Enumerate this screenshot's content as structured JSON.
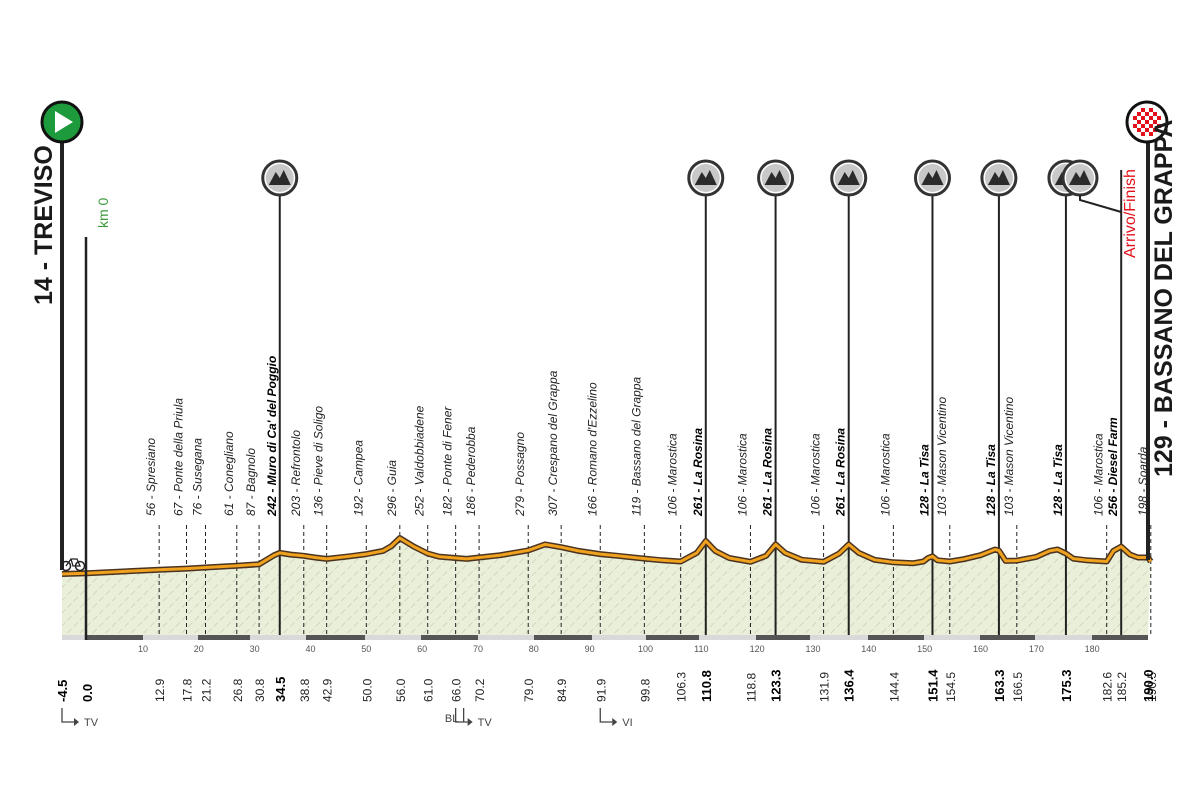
{
  "start": {
    "label": "14 - TREVISO",
    "km": "-4.5"
  },
  "finish": {
    "label": "129 - BASSANO DEL GRAPPA",
    "sub": "Arrivo/Finish",
    "km": "190.0"
  },
  "km0_label": "km 0",
  "road_signs": [
    {
      "km": -4.5,
      "text": "TV"
    },
    {
      "km": 66.0,
      "text": "BL",
      "extra": "TV"
    },
    {
      "km": 91.9,
      "text": "VI"
    }
  ],
  "colors": {
    "profile_line": "#f0a21e",
    "profile_outline": "#4a3320",
    "fill": "#e9efd9",
    "hatch": "#b9c2a8",
    "start_marker": "#1d9a3b",
    "finish_accent": "#e3111b"
  },
  "chart_data": {
    "type": "area",
    "xlabel": "",
    "ylabel": "",
    "xlim": [
      -4.5,
      190.0
    ],
    "axis_ticks": [
      10,
      20,
      30,
      40,
      50,
      60,
      70,
      80,
      90,
      100,
      110,
      120,
      130,
      140,
      150,
      160,
      170,
      180
    ],
    "elevation_profile": {
      "x": [
        -4.5,
        0,
        12.9,
        17.8,
        21.2,
        26.8,
        30.8,
        33.5,
        34.5,
        36.5,
        38.8,
        40.8,
        42.9,
        47,
        50.0,
        53,
        54.5,
        56.0,
        58.5,
        61.0,
        63,
        66.0,
        68,
        70.2,
        74,
        79.0,
        82,
        84.9,
        88,
        91.9,
        95,
        99.8,
        103,
        106.3,
        109.2,
        110.8,
        112.5,
        115,
        118.8,
        121.6,
        123.3,
        125,
        128,
        131.9,
        134.7,
        136.4,
        138.2,
        141,
        144.4,
        148,
        149.8,
        150.6,
        151.4,
        152.3,
        154.5,
        157,
        160,
        162.6,
        163.3,
        164.5,
        166.5,
        170,
        172.4,
        173.8,
        175.3,
        176.6,
        179,
        182.6,
        183.8,
        185.2,
        186.8,
        188.2,
        190.5,
        190.0
      ],
      "y": [
        14,
        17,
        29,
        33,
        37,
        43,
        48,
        80,
        88,
        82,
        78,
        72,
        67,
        76,
        84,
        95,
        112,
        140,
        110,
        86,
        75,
        70,
        67,
        72,
        80,
        97,
        118,
        108,
        95,
        84,
        78,
        68,
        62,
        58,
        88,
        130,
        95,
        70,
        57,
        78,
        118,
        88,
        64,
        57,
        86,
        118,
        88,
        64,
        55,
        52,
        58,
        70,
        76,
        62,
        58,
        66,
        80,
        100,
        96,
        60,
        61,
        74,
        95,
        100,
        86,
        68,
        62,
        58,
        95,
        110,
        82,
        72,
        58,
        72
      ]
    },
    "waypoints": [
      {
        "km": 12.9,
        "label": "56 - Spresiano"
      },
      {
        "km": 17.8,
        "label": "67 - Ponte della Priula"
      },
      {
        "km": 21.2,
        "label": "76 - Susegana"
      },
      {
        "km": 26.8,
        "label": "61 - Conegliano"
      },
      {
        "km": 30.8,
        "label": "87 - Bagnolo"
      },
      {
        "km": 34.5,
        "label": "242 - Muro di Ca' del Poggio",
        "climb": true
      },
      {
        "km": 38.8,
        "label": "203 - Refrontolo"
      },
      {
        "km": 42.9,
        "label": "136 - Pieve di Soligo"
      },
      {
        "km": 50.0,
        "label": "192 - Campea"
      },
      {
        "km": 56.0,
        "label": "296 - Guia"
      },
      {
        "km": 61.0,
        "label": "252 - Valdobbiadene"
      },
      {
        "km": 66.0,
        "label": "182 - Ponte di Fener"
      },
      {
        "km": 70.2,
        "label": "186 - Pederobba"
      },
      {
        "km": 79.0,
        "label": "279 - Possagno"
      },
      {
        "km": 84.9,
        "label": "307 - Crespano del Grappa"
      },
      {
        "km": 91.9,
        "label": "166 - Romano d'Ezzelino"
      },
      {
        "km": 99.8,
        "label": "119 - Bassano del Grappa"
      },
      {
        "km": 106.3,
        "label": "106 - Marostica"
      },
      {
        "km": 110.8,
        "label": "261 - La Rosina",
        "climb": true
      },
      {
        "km": 118.8,
        "label": "106 - Marostica"
      },
      {
        "km": 123.3,
        "label": "261 - La Rosina",
        "climb": true
      },
      {
        "km": 131.9,
        "label": "106 - Marostica"
      },
      {
        "km": 136.4,
        "label": "261 - La Rosina",
        "climb": true
      },
      {
        "km": 144.4,
        "label": "106 - Marostica"
      },
      {
        "km": 151.4,
        "label": "128 - La Tisa",
        "climb": true
      },
      {
        "km": 154.5,
        "label": "103 - Mason Vicentino"
      },
      {
        "km": 163.3,
        "label": "128 - La Tisa",
        "climb": true
      },
      {
        "km": 166.5,
        "label": "103 - Mason Vicentino"
      },
      {
        "km": 175.3,
        "label": "128 - La Tisa",
        "climb": true
      },
      {
        "km": 182.6,
        "label": "106 - Marostica"
      },
      {
        "km": 185.2,
        "label": "256 - Diesel Farm",
        "climb": true
      },
      {
        "km": 190.5,
        "label": "198 - Soarda"
      }
    ],
    "km_labels": [
      {
        "km": -4.5,
        "text": "-4.5",
        "bold": true
      },
      {
        "km": 0.0,
        "text": "0.0",
        "bold": true
      },
      {
        "km": 12.9,
        "text": "12.9"
      },
      {
        "km": 17.8,
        "text": "17.8"
      },
      {
        "km": 21.2,
        "text": "21.2"
      },
      {
        "km": 26.8,
        "text": "26.8"
      },
      {
        "km": 30.8,
        "text": "30.8"
      },
      {
        "km": 34.5,
        "text": "34.5",
        "bold": true
      },
      {
        "km": 38.8,
        "text": "38.8"
      },
      {
        "km": 42.9,
        "text": "42.9"
      },
      {
        "km": 50.0,
        "text": "50.0"
      },
      {
        "km": 56.0,
        "text": "56.0"
      },
      {
        "km": 61.0,
        "text": "61.0"
      },
      {
        "km": 66.0,
        "text": "66.0"
      },
      {
        "km": 70.2,
        "text": "70.2"
      },
      {
        "km": 79.0,
        "text": "79.0"
      },
      {
        "km": 84.9,
        "text": "84.9"
      },
      {
        "km": 91.9,
        "text": "91.9"
      },
      {
        "km": 99.8,
        "text": "99.8"
      },
      {
        "km": 106.3,
        "text": "106.3"
      },
      {
        "km": 110.8,
        "text": "110.8",
        "bold": true
      },
      {
        "km": 118.8,
        "text": "118.8"
      },
      {
        "km": 123.3,
        "text": "123.3",
        "bold": true
      },
      {
        "km": 131.9,
        "text": "131.9"
      },
      {
        "km": 136.4,
        "text": "136.4",
        "bold": true
      },
      {
        "km": 144.4,
        "text": "144.4"
      },
      {
        "km": 151.4,
        "text": "151.4",
        "bold": true
      },
      {
        "km": 154.5,
        "text": "154.5"
      },
      {
        "km": 163.3,
        "text": "163.3",
        "bold": true
      },
      {
        "km": 166.5,
        "text": "166.5"
      },
      {
        "km": 175.3,
        "text": "175.3",
        "bold": true
      },
      {
        "km": 182.6,
        "text": "182.6"
      },
      {
        "km": 185.2,
        "text": "185.2"
      },
      {
        "km": 190.5,
        "text": "190.5"
      },
      {
        "km": 190.0,
        "text": "190.0",
        "bold": true
      }
    ],
    "kom_km": [
      34.5,
      110.8,
      123.3,
      136.4,
      151.4,
      163.3,
      175.3,
      185.2
    ]
  }
}
